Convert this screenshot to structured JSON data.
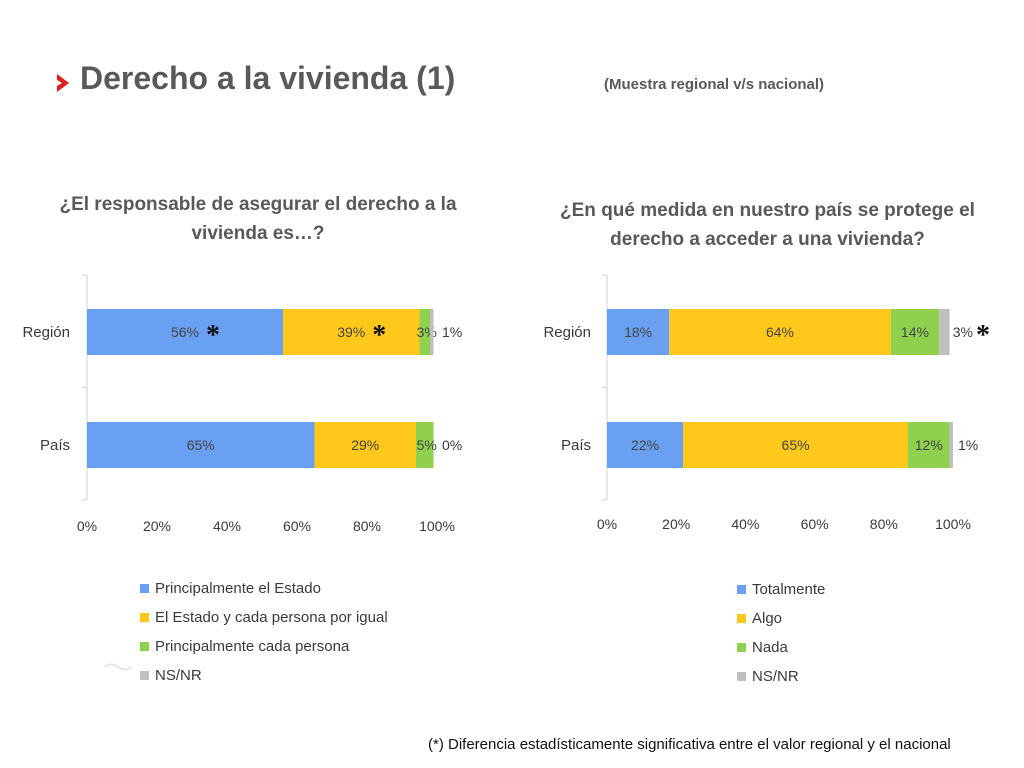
{
  "header": {
    "title": "Derecho a la vivienda (1)",
    "subtitle": "(Muestra regional v/s nacional)"
  },
  "colors": {
    "blue": "#6aa0f2",
    "yellow": "#ffc81a",
    "green": "#8fd14f",
    "gray": "#bfbfbf",
    "accent": "#e02020"
  },
  "footnote": "(*) Diferencia estadísticamente significativa entre el valor regional y el nacional",
  "chart_data": [
    {
      "type": "bar",
      "orientation": "horizontal",
      "stacked": true,
      "title": "¿El responsable de asegurar el derecho a la vivienda es…?",
      "categories": [
        "Región",
        "País"
      ],
      "xlim": [
        0,
        100
      ],
      "ticks": [
        "0%",
        "20%",
        "40%",
        "60%",
        "80%",
        "100%"
      ],
      "series": [
        {
          "name": "Principalmente el Estado",
          "values": [
            56,
            65
          ],
          "color": "#6aa0f2"
        },
        {
          "name": "El Estado y cada persona por igual",
          "values": [
            39,
            29
          ],
          "color": "#ffc81a"
        },
        {
          "name": "Principalmente cada persona",
          "values": [
            3,
            5
          ],
          "color": "#8fd14f"
        },
        {
          "name": "NS/NR",
          "values": [
            1,
            0
          ],
          "color": "#bfbfbf"
        }
      ],
      "labels": [
        [
          "56%",
          "39%",
          "3%",
          "1%"
        ],
        [
          "65%",
          "29%",
          "5%",
          "0%"
        ]
      ],
      "significance": [
        [
          "*",
          "*",
          "",
          ""
        ],
        [
          "",
          "",
          "",
          ""
        ]
      ],
      "legend": "bottom"
    },
    {
      "type": "bar",
      "orientation": "horizontal",
      "stacked": true,
      "title": "¿En qué medida en nuestro país se protege el derecho a acceder a una vivienda?",
      "categories": [
        "Región",
        "País"
      ],
      "xlim": [
        0,
        100
      ],
      "ticks": [
        "0%",
        "20%",
        "40%",
        "60%",
        "80%",
        "100%"
      ],
      "series": [
        {
          "name": "Totalmente",
          "values": [
            18,
            22
          ],
          "color": "#6aa0f2"
        },
        {
          "name": "Algo",
          "values": [
            64,
            65
          ],
          "color": "#ffc81a"
        },
        {
          "name": "Nada",
          "values": [
            14,
            12
          ],
          "color": "#8fd14f"
        },
        {
          "name": "NS/NR",
          "values": [
            3,
            1
          ],
          "color": "#bfbfbf"
        }
      ],
      "labels": [
        [
          "18%",
          "64%",
          "14%",
          "3%"
        ],
        [
          "22%",
          "65%",
          "12%",
          "1%"
        ]
      ],
      "significance": [
        [
          "",
          "",
          "",
          "*"
        ],
        [
          "",
          "",
          "",
          ""
        ]
      ],
      "legend": "bottom"
    }
  ]
}
